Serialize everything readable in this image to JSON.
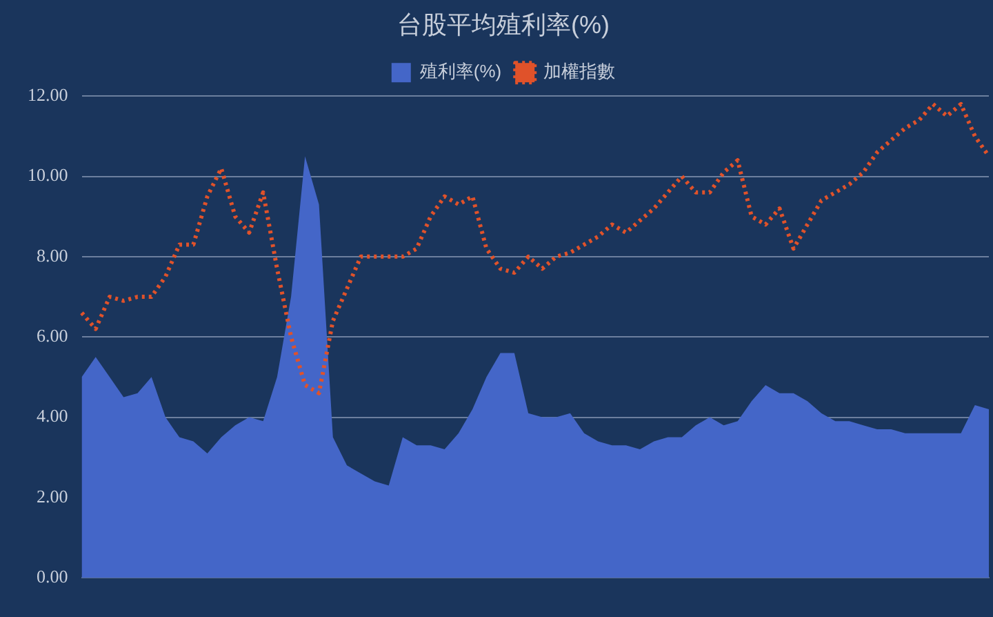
{
  "chart_data": {
    "type": "area",
    "title": "台股平均殖利率(%)",
    "categories": [
      null,
      null,
      null,
      null,
      null,
      null,
      null,
      null,
      null,
      null,
      null,
      null,
      null,
      null,
      null,
      null,
      null,
      null,
      null,
      null,
      null,
      null,
      null,
      null,
      null,
      null,
      null,
      null,
      null,
      null,
      null,
      null,
      null,
      null,
      null,
      null,
      null,
      null,
      null,
      null,
      null,
      null,
      null,
      null,
      null,
      null,
      null,
      null,
      null,
      null,
      null,
      null,
      null,
      null,
      null,
      null,
      null,
      null,
      null,
      null,
      null,
      null,
      null,
      null,
      null,
      null
    ],
    "series": [
      {
        "name": "殖利率(%)",
        "color": "#4466c8",
        "values": [
          5.0,
          5.5,
          5.0,
          4.5,
          4.6,
          5.0,
          4.0,
          3.5,
          3.4,
          3.1,
          3.5,
          3.8,
          4.0,
          3.9,
          5.0,
          7.0,
          10.5,
          9.3,
          3.5,
          2.8,
          2.6,
          2.4,
          2.3,
          3.5,
          3.3,
          3.3,
          3.2,
          3.6,
          4.2,
          5.0,
          5.6,
          5.6,
          4.1,
          4.0,
          4.0,
          4.1,
          3.6,
          3.4,
          3.3,
          3.3,
          3.2,
          3.4,
          3.5,
          3.5,
          3.8,
          4.0,
          3.8,
          3.9,
          4.4,
          4.8,
          4.6,
          4.6,
          4.4,
          4.1,
          3.9,
          3.9,
          3.8,
          3.7,
          3.7,
          3.6,
          3.6,
          3.6,
          3.6,
          3.6,
          4.3,
          4.2
        ]
      },
      {
        "name": "加權指數",
        "type": "line",
        "color": "#e0522a",
        "line_style": "dotted",
        "values": [
          6.6,
          6.2,
          7.0,
          6.9,
          7.0,
          7.0,
          7.5,
          8.3,
          8.3,
          9.5,
          10.2,
          9.0,
          8.6,
          9.6,
          7.7,
          6.0,
          4.8,
          4.6,
          6.4,
          7.2,
          8.0,
          8.0,
          8.0,
          8.0,
          8.2,
          9.0,
          9.5,
          9.3,
          9.5,
          8.2,
          7.7,
          7.6,
          8.0,
          7.7,
          8.0,
          8.1,
          8.3,
          8.5,
          8.8,
          8.6,
          8.9,
          9.2,
          9.6,
          10.0,
          9.6,
          9.6,
          10.1,
          10.4,
          9.0,
          8.8,
          9.2,
          8.2,
          8.8,
          9.4,
          9.6,
          9.8,
          10.1,
          10.6,
          10.9,
          11.2,
          11.4,
          11.8,
          11.5,
          11.8,
          11.0,
          10.5
        ]
      }
    ],
    "ylim": [
      0,
      12
    ],
    "yticks": [
      {
        "value": 0,
        "label": "0.00"
      },
      {
        "value": 2,
        "label": "2.00"
      },
      {
        "value": 4,
        "label": "4.00"
      },
      {
        "value": 6,
        "label": "6.00"
      },
      {
        "value": 8,
        "label": "8.00"
      },
      {
        "value": 10,
        "label": "10.00"
      },
      {
        "value": 12,
        "label": "12.00"
      }
    ],
    "grid": "y",
    "legend": "top",
    "marker": "none"
  }
}
